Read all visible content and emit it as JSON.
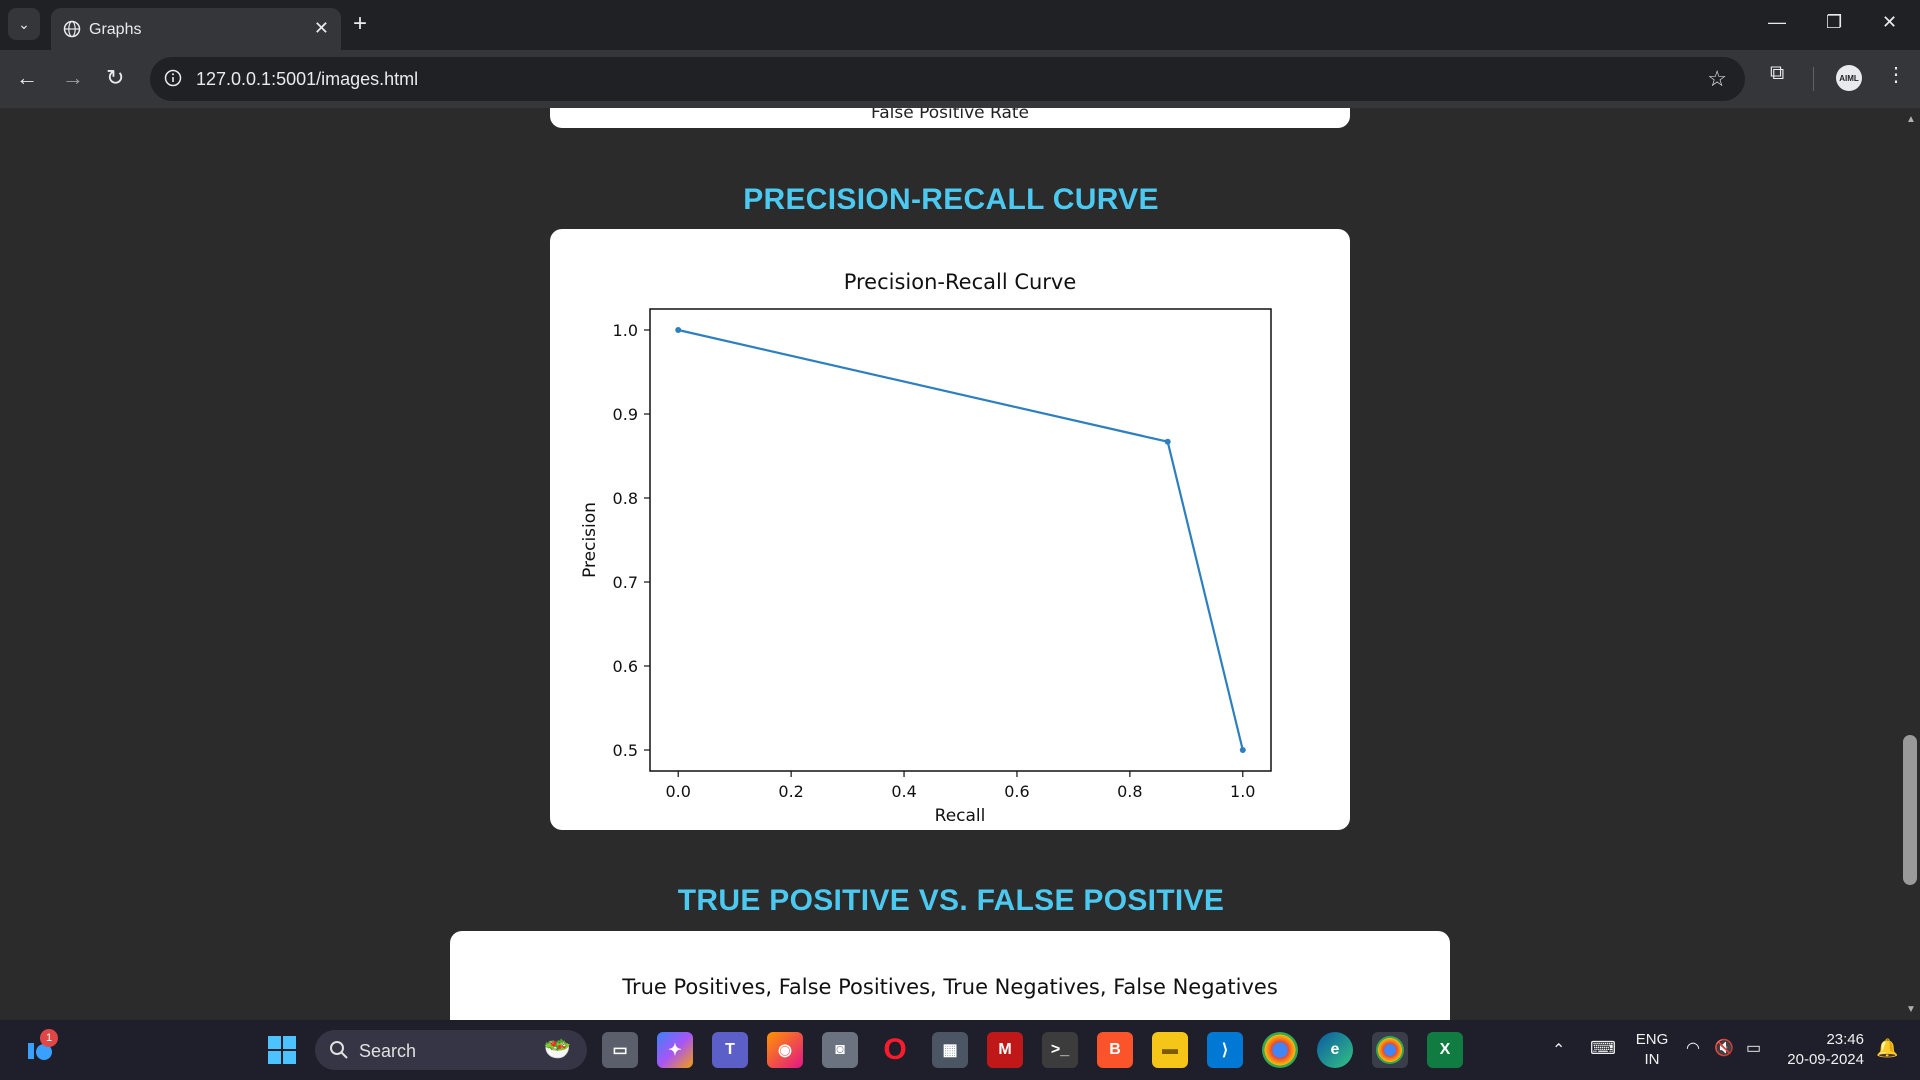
{
  "browser": {
    "tab_title": "Graphs",
    "url": "127.0.0.1:5001/images.html"
  },
  "page": {
    "prev_card_caption": "False Positive Rate",
    "section1_heading": "PRECISION-RECALL CURVE",
    "section2_heading": "TRUE POSITIVE VS. FALSE POSITIVE",
    "card2_title": "True Positives, False Positives, True Negatives, False Negatives"
  },
  "chart_data": {
    "type": "line",
    "title": "Precision-Recall Curve",
    "xlabel": "Recall",
    "ylabel": "Precision",
    "x": [
      0.0,
      0.867,
      1.0
    ],
    "y": [
      1.0,
      0.867,
      0.5
    ],
    "xlim": [
      -0.05,
      1.05
    ],
    "ylim": [
      0.475,
      1.025
    ],
    "xticks": [
      "0.0",
      "0.2",
      "0.4",
      "0.6",
      "0.8",
      "1.0"
    ],
    "yticks": [
      "0.5",
      "0.6",
      "0.7",
      "0.8",
      "0.9",
      "1.0"
    ],
    "line_color": "#2e7fbf",
    "grid": false
  },
  "taskbar": {
    "search_placeholder": "Search",
    "notification_count": "1",
    "lang_line1": "ENG",
    "lang_line2": "IN",
    "time": "23:46",
    "date": "20-09-2024"
  },
  "colors": {
    "heading": "#4cc9f0",
    "page_bg": "#2b2b2b",
    "card_bg": "#ffffff"
  }
}
